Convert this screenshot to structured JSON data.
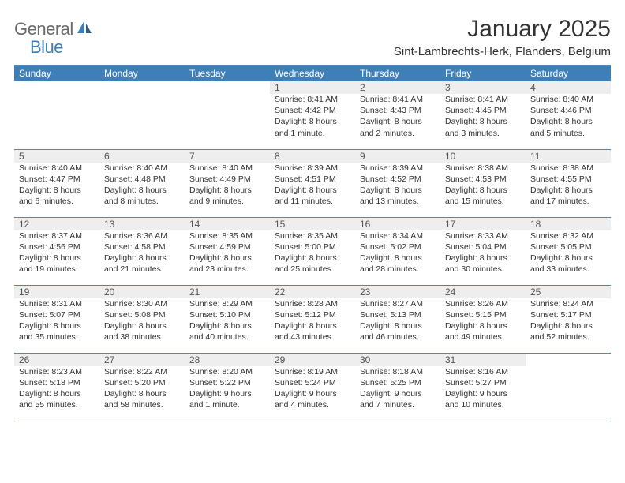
{
  "logo": {
    "general": "General",
    "blue": "Blue"
  },
  "title": "January 2025",
  "location": "Sint-Lambrechts-Herk, Flanders, Belgium",
  "colors": {
    "header_blue": "#3e7fb8",
    "rule_blue": "#5386b8",
    "daynum_bg": "#eeeeee",
    "text": "#333333",
    "logo_gray": "#6b6b6b",
    "logo_blue": "#3e7fb8",
    "background": "#ffffff"
  },
  "typography": {
    "title_fontsize": 30,
    "location_fontsize": 15,
    "header_fontsize": 12,
    "cell_fontsize": 10.5
  },
  "days_of_week": [
    "Sunday",
    "Monday",
    "Tuesday",
    "Wednesday",
    "Thursday",
    "Friday",
    "Saturday"
  ],
  "weeks": [
    [
      null,
      null,
      null,
      {
        "n": "1",
        "sunrise": "Sunrise: 8:41 AM",
        "sunset": "Sunset: 4:42 PM",
        "daylight": "Daylight: 8 hours and 1 minute."
      },
      {
        "n": "2",
        "sunrise": "Sunrise: 8:41 AM",
        "sunset": "Sunset: 4:43 PM",
        "daylight": "Daylight: 8 hours and 2 minutes."
      },
      {
        "n": "3",
        "sunrise": "Sunrise: 8:41 AM",
        "sunset": "Sunset: 4:45 PM",
        "daylight": "Daylight: 8 hours and 3 minutes."
      },
      {
        "n": "4",
        "sunrise": "Sunrise: 8:40 AM",
        "sunset": "Sunset: 4:46 PM",
        "daylight": "Daylight: 8 hours and 5 minutes."
      }
    ],
    [
      {
        "n": "5",
        "sunrise": "Sunrise: 8:40 AM",
        "sunset": "Sunset: 4:47 PM",
        "daylight": "Daylight: 8 hours and 6 minutes."
      },
      {
        "n": "6",
        "sunrise": "Sunrise: 8:40 AM",
        "sunset": "Sunset: 4:48 PM",
        "daylight": "Daylight: 8 hours and 8 minutes."
      },
      {
        "n": "7",
        "sunrise": "Sunrise: 8:40 AM",
        "sunset": "Sunset: 4:49 PM",
        "daylight": "Daylight: 8 hours and 9 minutes."
      },
      {
        "n": "8",
        "sunrise": "Sunrise: 8:39 AM",
        "sunset": "Sunset: 4:51 PM",
        "daylight": "Daylight: 8 hours and 11 minutes."
      },
      {
        "n": "9",
        "sunrise": "Sunrise: 8:39 AM",
        "sunset": "Sunset: 4:52 PM",
        "daylight": "Daylight: 8 hours and 13 minutes."
      },
      {
        "n": "10",
        "sunrise": "Sunrise: 8:38 AM",
        "sunset": "Sunset: 4:53 PM",
        "daylight": "Daylight: 8 hours and 15 minutes."
      },
      {
        "n": "11",
        "sunrise": "Sunrise: 8:38 AM",
        "sunset": "Sunset: 4:55 PM",
        "daylight": "Daylight: 8 hours and 17 minutes."
      }
    ],
    [
      {
        "n": "12",
        "sunrise": "Sunrise: 8:37 AM",
        "sunset": "Sunset: 4:56 PM",
        "daylight": "Daylight: 8 hours and 19 minutes."
      },
      {
        "n": "13",
        "sunrise": "Sunrise: 8:36 AM",
        "sunset": "Sunset: 4:58 PM",
        "daylight": "Daylight: 8 hours and 21 minutes."
      },
      {
        "n": "14",
        "sunrise": "Sunrise: 8:35 AM",
        "sunset": "Sunset: 4:59 PM",
        "daylight": "Daylight: 8 hours and 23 minutes."
      },
      {
        "n": "15",
        "sunrise": "Sunrise: 8:35 AM",
        "sunset": "Sunset: 5:00 PM",
        "daylight": "Daylight: 8 hours and 25 minutes."
      },
      {
        "n": "16",
        "sunrise": "Sunrise: 8:34 AM",
        "sunset": "Sunset: 5:02 PM",
        "daylight": "Daylight: 8 hours and 28 minutes."
      },
      {
        "n": "17",
        "sunrise": "Sunrise: 8:33 AM",
        "sunset": "Sunset: 5:04 PM",
        "daylight": "Daylight: 8 hours and 30 minutes."
      },
      {
        "n": "18",
        "sunrise": "Sunrise: 8:32 AM",
        "sunset": "Sunset: 5:05 PM",
        "daylight": "Daylight: 8 hours and 33 minutes."
      }
    ],
    [
      {
        "n": "19",
        "sunrise": "Sunrise: 8:31 AM",
        "sunset": "Sunset: 5:07 PM",
        "daylight": "Daylight: 8 hours and 35 minutes."
      },
      {
        "n": "20",
        "sunrise": "Sunrise: 8:30 AM",
        "sunset": "Sunset: 5:08 PM",
        "daylight": "Daylight: 8 hours and 38 minutes."
      },
      {
        "n": "21",
        "sunrise": "Sunrise: 8:29 AM",
        "sunset": "Sunset: 5:10 PM",
        "daylight": "Daylight: 8 hours and 40 minutes."
      },
      {
        "n": "22",
        "sunrise": "Sunrise: 8:28 AM",
        "sunset": "Sunset: 5:12 PM",
        "daylight": "Daylight: 8 hours and 43 minutes."
      },
      {
        "n": "23",
        "sunrise": "Sunrise: 8:27 AM",
        "sunset": "Sunset: 5:13 PM",
        "daylight": "Daylight: 8 hours and 46 minutes."
      },
      {
        "n": "24",
        "sunrise": "Sunrise: 8:26 AM",
        "sunset": "Sunset: 5:15 PM",
        "daylight": "Daylight: 8 hours and 49 minutes."
      },
      {
        "n": "25",
        "sunrise": "Sunrise: 8:24 AM",
        "sunset": "Sunset: 5:17 PM",
        "daylight": "Daylight: 8 hours and 52 minutes."
      }
    ],
    [
      {
        "n": "26",
        "sunrise": "Sunrise: 8:23 AM",
        "sunset": "Sunset: 5:18 PM",
        "daylight": "Daylight: 8 hours and 55 minutes."
      },
      {
        "n": "27",
        "sunrise": "Sunrise: 8:22 AM",
        "sunset": "Sunset: 5:20 PM",
        "daylight": "Daylight: 8 hours and 58 minutes."
      },
      {
        "n": "28",
        "sunrise": "Sunrise: 8:20 AM",
        "sunset": "Sunset: 5:22 PM",
        "daylight": "Daylight: 9 hours and 1 minute."
      },
      {
        "n": "29",
        "sunrise": "Sunrise: 8:19 AM",
        "sunset": "Sunset: 5:24 PM",
        "daylight": "Daylight: 9 hours and 4 minutes."
      },
      {
        "n": "30",
        "sunrise": "Sunrise: 8:18 AM",
        "sunset": "Sunset: 5:25 PM",
        "daylight": "Daylight: 9 hours and 7 minutes."
      },
      {
        "n": "31",
        "sunrise": "Sunrise: 8:16 AM",
        "sunset": "Sunset: 5:27 PM",
        "daylight": "Daylight: 9 hours and 10 minutes."
      },
      null
    ]
  ]
}
